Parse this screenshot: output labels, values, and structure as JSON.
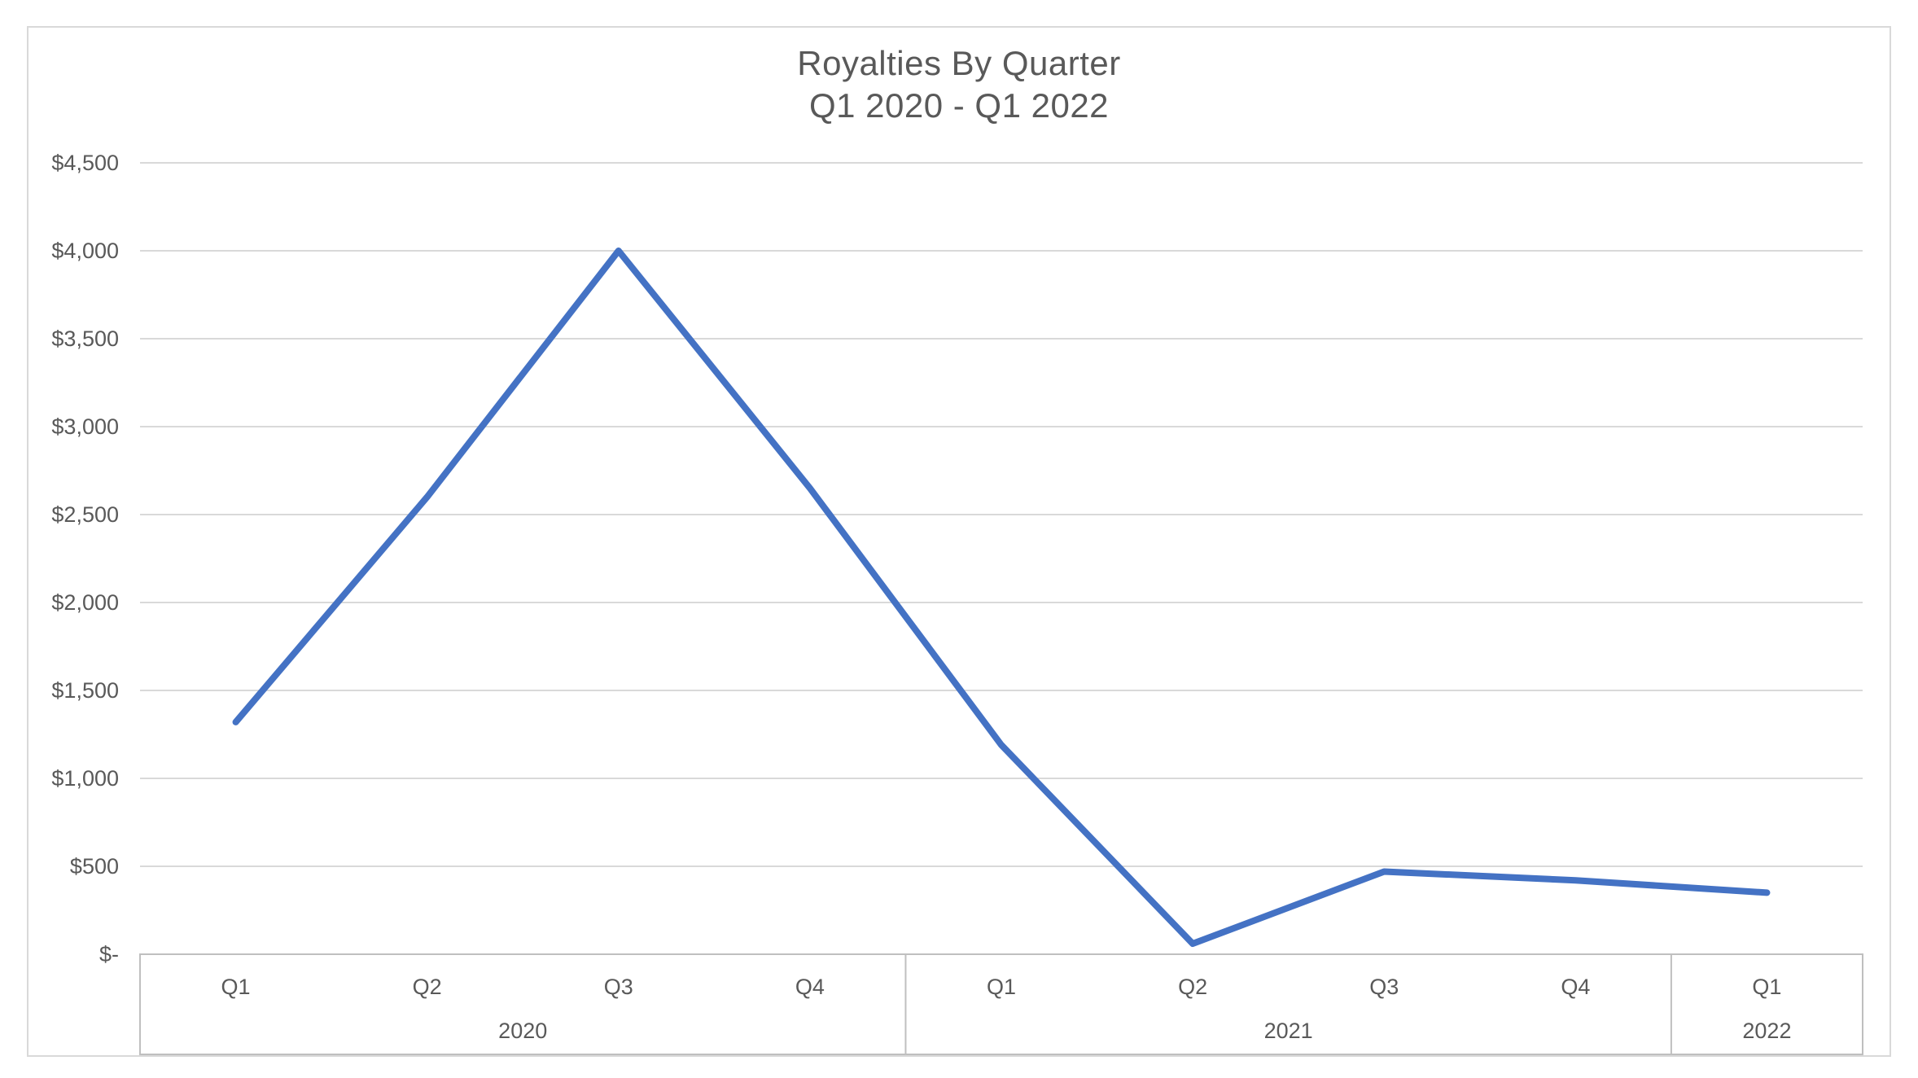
{
  "chart": {
    "title_line1": "Royalties By Quarter",
    "title_line2": "Q1 2020 - Q1 2022",
    "colors": {
      "series_line": "#4472C4",
      "text": "#595959",
      "gridline": "#D9D9D9",
      "axis_border": "#BFBFBF",
      "frame_border": "#D9D9D9",
      "background": "#FFFFFF"
    }
  },
  "chart_data": {
    "type": "line",
    "title": "Royalties By Quarter",
    "subtitle": "Q1 2020 - Q1 2022",
    "categories": [
      "Q1",
      "Q2",
      "Q3",
      "Q4",
      "Q1",
      "Q2",
      "Q3",
      "Q4",
      "Q1"
    ],
    "year_groups": [
      {
        "label": "2020",
        "span": 4
      },
      {
        "label": "2021",
        "span": 4
      },
      {
        "label": "2022",
        "span": 1
      }
    ],
    "values": [
      1320,
      2600,
      4000,
      2650,
      1190,
      60,
      470,
      420,
      350
    ],
    "series_color": "#4472C4",
    "y_axis": {
      "range": [
        0,
        4500
      ],
      "tick_values": [
        0,
        500,
        1000,
        1500,
        2000,
        2500,
        3000,
        3500,
        4000,
        4500
      ],
      "tick_labels": [
        "$-",
        "$500",
        "$1,000",
        "$1,500",
        "$2,000",
        "$2,500",
        "$3,000",
        "$3,500",
        "$4,000",
        "$4,500"
      ]
    },
    "grid": true,
    "legend": "none",
    "xlabel": "",
    "ylabel": ""
  }
}
